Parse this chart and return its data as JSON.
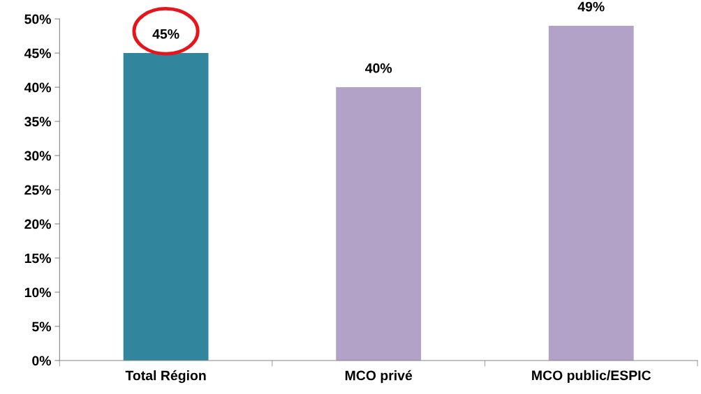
{
  "chart_data": {
    "type": "bar",
    "categories": [
      "Total Région",
      "MCO privé",
      "MCO public/ESPIC"
    ],
    "values": [
      45,
      40,
      49
    ],
    "colors": [
      "#31859c",
      "#b3a2c7",
      "#b3a2c7"
    ],
    "value_labels": [
      "45%",
      "40%",
      "49%"
    ],
    "ylim": [
      0,
      50
    ],
    "yticks": [
      {
        "value": 0,
        "label": "0%"
      },
      {
        "value": 5,
        "label": "5%"
      },
      {
        "value": 10,
        "label": "10%"
      },
      {
        "value": 15,
        "label": "15%"
      },
      {
        "value": 20,
        "label": "20%"
      },
      {
        "value": 25,
        "label": "25%"
      },
      {
        "value": 30,
        "label": "30%"
      },
      {
        "value": 35,
        "label": "35%"
      },
      {
        "value": 40,
        "label": "40%"
      },
      {
        "value": 45,
        "label": "45%"
      },
      {
        "value": 50,
        "label": "50%"
      }
    ],
    "grid": false,
    "legend": false
  }
}
